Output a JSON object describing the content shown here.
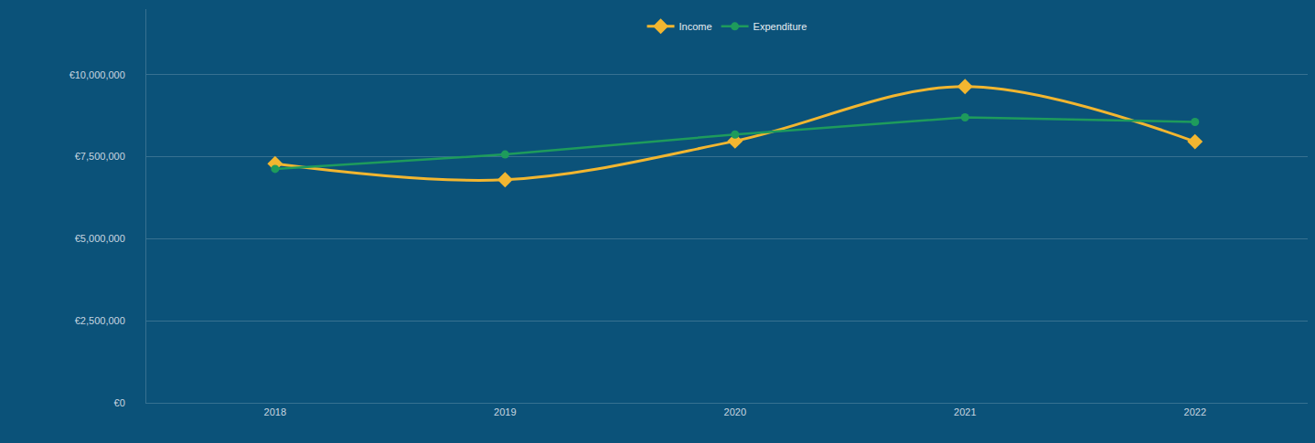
{
  "chart_data": {
    "type": "line",
    "x": [
      2018,
      2019,
      2020,
      2021,
      2022
    ],
    "series": [
      {
        "name": "Income",
        "color": "#f2b630",
        "marker": "diamond",
        "line_style": "smooth",
        "values": [
          7290000,
          6800000,
          7980000,
          9640000,
          7960000
        ]
      },
      {
        "name": "Expenditure",
        "color": "#1e9b5c",
        "marker": "circle",
        "line_style": "solid",
        "values": [
          7130000,
          7570000,
          8180000,
          8700000,
          8560000
        ]
      }
    ],
    "xlim": [
      2017.44,
      2022.49
    ],
    "xticks": [
      2018,
      2019,
      2020,
      2021,
      2022
    ],
    "ylim": [
      0,
      12000000
    ],
    "yticks": [
      {
        "value": 0,
        "label": "€0"
      },
      {
        "value": 2500000,
        "label": "€2,500,000"
      },
      {
        "value": 5000000,
        "label": "€5,000,000"
      },
      {
        "value": 7500000,
        "label": "€7,500,000"
      },
      {
        "value": 10000000,
        "label": "€10,000,000"
      }
    ],
    "grid": true,
    "legend": "top"
  }
}
